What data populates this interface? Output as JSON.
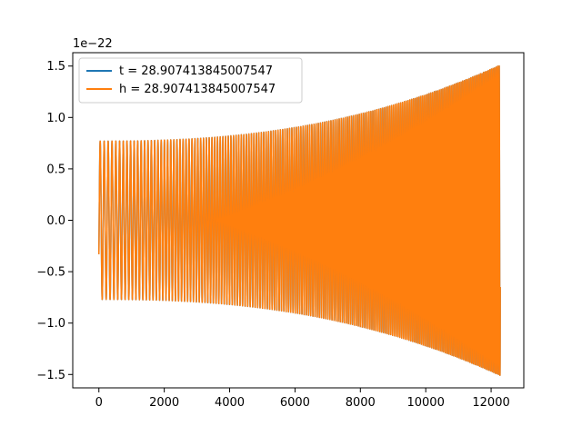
{
  "chart_data": {
    "type": "line",
    "title": "",
    "xlabel": "",
    "ylabel": "",
    "y_offset_label": "1e−22",
    "xlim": [
      -800,
      13000
    ],
    "ylim": [
      -1.63,
      1.63
    ],
    "x_ticks": [
      0,
      2000,
      4000,
      6000,
      8000,
      10000,
      12000
    ],
    "y_ticks": [
      -1.5,
      -1.0,
      -0.5,
      0.0,
      0.5,
      1.0,
      1.5
    ],
    "grid": false,
    "legend_position": "upper-left",
    "series": [
      {
        "name": "t = 28.907413845007547",
        "color": "#1f77b4",
        "x_start": 0,
        "x_end": 12280,
        "initial_value": -0.33,
        "amplitude_start": 0.77,
        "amplitude_end": 1.51,
        "cycles": 180
      },
      {
        "name": "h = 28.907413845007547",
        "color": "#ff7f0e",
        "x_start": 0,
        "x_end": 12280,
        "initial_value": -0.33,
        "amplitude_start": 0.77,
        "amplitude_end": 1.51,
        "cycles": 180
      }
    ]
  }
}
